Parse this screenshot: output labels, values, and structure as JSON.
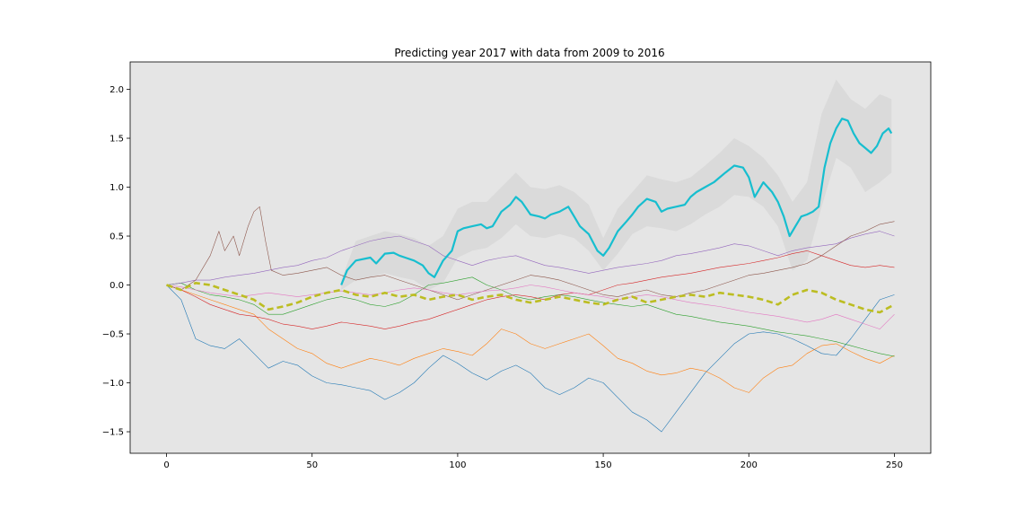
{
  "chart_data": {
    "type": "line",
    "title": "Predicting year 2017 with data from 2009 to 2016",
    "xlabel": "",
    "ylabel": "",
    "xlim": [
      -12.5,
      262.5
    ],
    "ylim": [
      -1.72,
      2.28
    ],
    "x_ticks": [
      0,
      50,
      100,
      150,
      200,
      250
    ],
    "y_ticks": [
      -1.5,
      -1.0,
      -0.5,
      0.0,
      0.5,
      1.0,
      1.5,
      2.0
    ],
    "x_tick_labels": [
      "0",
      "50",
      "100",
      "150",
      "200",
      "250"
    ],
    "y_tick_labels": [
      "−1.5",
      "−1.0",
      "−0.5",
      "0.0",
      "0.5",
      "1.0",
      "1.5",
      "2.0"
    ],
    "grid": false,
    "legend": "none",
    "plot_background": "#e5e5e5",
    "series": [
      {
        "color": "#1f77b4",
        "width": 0.6,
        "dash": "",
        "x": [
          0,
          5,
          10,
          15,
          20,
          25,
          30,
          35,
          40,
          45,
          50,
          55,
          60,
          65,
          70,
          75,
          80,
          85,
          90,
          95,
          100,
          105,
          110,
          115,
          120,
          125,
          130,
          135,
          140,
          145,
          150,
          155,
          160,
          165,
          170,
          175,
          180,
          185,
          190,
          195,
          200,
          205,
          210,
          215,
          220,
          225,
          230,
          235,
          240,
          245,
          250
        ],
        "y": [
          0.0,
          -0.15,
          -0.55,
          -0.62,
          -0.65,
          -0.55,
          -0.7,
          -0.85,
          -0.78,
          -0.82,
          -0.93,
          -1.0,
          -1.02,
          -1.05,
          -1.08,
          -1.17,
          -1.1,
          -1.0,
          -0.85,
          -0.72,
          -0.8,
          -0.9,
          -0.97,
          -0.88,
          -0.82,
          -0.9,
          -1.05,
          -1.12,
          -1.05,
          -0.95,
          -1.0,
          -1.15,
          -1.3,
          -1.38,
          -1.5,
          -1.3,
          -1.1,
          -0.9,
          -0.75,
          -0.6,
          -0.5,
          -0.48,
          -0.5,
          -0.55,
          -0.62,
          -0.7,
          -0.72,
          -0.55,
          -0.35,
          -0.15,
          -0.1
        ]
      },
      {
        "color": "#ff7f0e",
        "width": 0.6,
        "dash": "",
        "x": [
          0,
          5,
          10,
          15,
          20,
          25,
          30,
          35,
          40,
          45,
          50,
          55,
          60,
          65,
          70,
          75,
          80,
          85,
          90,
          95,
          100,
          105,
          110,
          115,
          120,
          125,
          130,
          135,
          140,
          145,
          150,
          155,
          160,
          165,
          170,
          175,
          180,
          185,
          190,
          195,
          200,
          205,
          210,
          215,
          220,
          225,
          230,
          235,
          240,
          245,
          250
        ],
        "y": [
          0.0,
          -0.05,
          -0.1,
          -0.15,
          -0.2,
          -0.25,
          -0.3,
          -0.45,
          -0.55,
          -0.65,
          -0.7,
          -0.8,
          -0.85,
          -0.8,
          -0.75,
          -0.78,
          -0.82,
          -0.75,
          -0.7,
          -0.65,
          -0.68,
          -0.72,
          -0.6,
          -0.45,
          -0.5,
          -0.6,
          -0.65,
          -0.6,
          -0.55,
          -0.5,
          -0.62,
          -0.75,
          -0.8,
          -0.88,
          -0.92,
          -0.9,
          -0.85,
          -0.88,
          -0.95,
          -1.05,
          -1.1,
          -0.95,
          -0.85,
          -0.82,
          -0.7,
          -0.62,
          -0.6,
          -0.68,
          -0.75,
          -0.8,
          -0.72
        ]
      },
      {
        "color": "#2ca02c",
        "width": 0.6,
        "dash": "",
        "x": [
          0,
          5,
          10,
          15,
          20,
          25,
          30,
          35,
          40,
          45,
          50,
          55,
          60,
          65,
          70,
          75,
          80,
          85,
          90,
          95,
          100,
          105,
          110,
          115,
          120,
          125,
          130,
          135,
          140,
          145,
          150,
          155,
          160,
          165,
          170,
          175,
          180,
          185,
          190,
          195,
          200,
          205,
          210,
          215,
          220,
          225,
          230,
          235,
          240,
          245,
          250
        ],
        "y": [
          0.0,
          0.02,
          -0.05,
          -0.1,
          -0.12,
          -0.15,
          -0.2,
          -0.3,
          -0.3,
          -0.25,
          -0.2,
          -0.15,
          -0.12,
          -0.15,
          -0.2,
          -0.22,
          -0.18,
          -0.1,
          0.0,
          0.02,
          0.05,
          0.08,
          0.0,
          -0.05,
          -0.12,
          -0.15,
          -0.12,
          -0.1,
          -0.12,
          -0.15,
          -0.18,
          -0.2,
          -0.22,
          -0.2,
          -0.25,
          -0.3,
          -0.32,
          -0.35,
          -0.38,
          -0.4,
          -0.42,
          -0.45,
          -0.48,
          -0.5,
          -0.52,
          -0.55,
          -0.58,
          -0.62,
          -0.66,
          -0.7,
          -0.73
        ]
      },
      {
        "color": "#d62728",
        "width": 0.6,
        "dash": "",
        "x": [
          0,
          5,
          10,
          15,
          20,
          25,
          30,
          35,
          40,
          45,
          50,
          55,
          60,
          65,
          70,
          75,
          80,
          85,
          90,
          95,
          100,
          105,
          110,
          115,
          120,
          125,
          130,
          135,
          140,
          145,
          150,
          155,
          160,
          165,
          170,
          175,
          180,
          185,
          190,
          195,
          200,
          205,
          210,
          215,
          220,
          225,
          230,
          235,
          240,
          245,
          250
        ],
        "y": [
          0.0,
          -0.05,
          -0.12,
          -0.2,
          -0.25,
          -0.3,
          -0.32,
          -0.35,
          -0.4,
          -0.42,
          -0.45,
          -0.42,
          -0.38,
          -0.4,
          -0.42,
          -0.45,
          -0.42,
          -0.38,
          -0.35,
          -0.3,
          -0.25,
          -0.2,
          -0.15,
          -0.12,
          -0.1,
          -0.12,
          -0.15,
          -0.1,
          -0.08,
          -0.1,
          -0.05,
          0.0,
          0.02,
          0.05,
          0.08,
          0.1,
          0.12,
          0.15,
          0.18,
          0.2,
          0.22,
          0.25,
          0.28,
          0.32,
          0.35,
          0.3,
          0.25,
          0.2,
          0.18,
          0.2,
          0.18
        ]
      },
      {
        "color": "#9467bd",
        "width": 0.6,
        "dash": "",
        "x": [
          0,
          5,
          10,
          15,
          20,
          25,
          30,
          35,
          40,
          45,
          50,
          55,
          60,
          65,
          70,
          75,
          80,
          85,
          90,
          95,
          100,
          105,
          110,
          115,
          120,
          125,
          130,
          135,
          140,
          145,
          150,
          155,
          160,
          165,
          170,
          175,
          180,
          185,
          190,
          195,
          200,
          205,
          210,
          215,
          220,
          225,
          230,
          235,
          240,
          245,
          250
        ],
        "y": [
          0.0,
          0.02,
          0.05,
          0.05,
          0.08,
          0.1,
          0.12,
          0.15,
          0.18,
          0.2,
          0.25,
          0.28,
          0.35,
          0.4,
          0.45,
          0.48,
          0.5,
          0.45,
          0.4,
          0.3,
          0.25,
          0.2,
          0.25,
          0.28,
          0.3,
          0.25,
          0.2,
          0.18,
          0.15,
          0.12,
          0.15,
          0.18,
          0.2,
          0.22,
          0.25,
          0.3,
          0.32,
          0.35,
          0.38,
          0.42,
          0.4,
          0.35,
          0.3,
          0.35,
          0.38,
          0.4,
          0.42,
          0.48,
          0.52,
          0.55,
          0.5
        ]
      },
      {
        "color": "#8c564b",
        "width": 0.6,
        "dash": "",
        "x": [
          0,
          5,
          10,
          15,
          18,
          20,
          23,
          25,
          28,
          30,
          32,
          34,
          36,
          40,
          45,
          50,
          55,
          60,
          65,
          70,
          75,
          80,
          85,
          90,
          95,
          100,
          105,
          110,
          115,
          120,
          125,
          130,
          135,
          140,
          145,
          150,
          155,
          160,
          165,
          170,
          175,
          180,
          185,
          190,
          195,
          200,
          205,
          210,
          215,
          220,
          225,
          230,
          235,
          240,
          245,
          250
        ],
        "y": [
          0.0,
          -0.05,
          0.05,
          0.3,
          0.55,
          0.35,
          0.5,
          0.3,
          0.6,
          0.75,
          0.8,
          0.45,
          0.15,
          0.1,
          0.12,
          0.15,
          0.18,
          0.1,
          0.05,
          0.08,
          0.1,
          0.05,
          0.0,
          -0.05,
          -0.1,
          -0.15,
          -0.1,
          -0.05,
          0.0,
          0.05,
          0.1,
          0.08,
          0.05,
          0.0,
          -0.05,
          -0.1,
          -0.12,
          -0.08,
          -0.05,
          -0.1,
          -0.12,
          -0.08,
          -0.05,
          0.0,
          0.05,
          0.1,
          0.12,
          0.15,
          0.18,
          0.22,
          0.3,
          0.4,
          0.5,
          0.55,
          0.62,
          0.65
        ]
      },
      {
        "color": "#e377c2",
        "width": 0.6,
        "dash": "",
        "x": [
          0,
          5,
          10,
          15,
          20,
          25,
          30,
          35,
          40,
          45,
          50,
          55,
          60,
          65,
          70,
          75,
          80,
          85,
          90,
          95,
          100,
          105,
          110,
          115,
          120,
          125,
          130,
          135,
          140,
          145,
          150,
          155,
          160,
          165,
          170,
          175,
          180,
          185,
          190,
          195,
          200,
          205,
          210,
          215,
          220,
          225,
          230,
          235,
          240,
          245,
          250
        ],
        "y": [
          0.0,
          -0.02,
          -0.05,
          -0.08,
          -0.1,
          -0.12,
          -0.1,
          -0.08,
          -0.1,
          -0.12,
          -0.1,
          -0.08,
          -0.06,
          -0.08,
          -0.1,
          -0.08,
          -0.05,
          -0.03,
          -0.05,
          -0.08,
          -0.1,
          -0.08,
          -0.06,
          -0.05,
          -0.03,
          0.0,
          -0.02,
          -0.05,
          -0.08,
          -0.1,
          -0.12,
          -0.15,
          -0.12,
          -0.1,
          -0.12,
          -0.15,
          -0.18,
          -0.2,
          -0.22,
          -0.25,
          -0.28,
          -0.3,
          -0.32,
          -0.35,
          -0.38,
          -0.35,
          -0.3,
          -0.35,
          -0.4,
          -0.45,
          -0.3
        ]
      },
      {
        "color": "#bcbd22",
        "width": 2.6,
        "dash": "7,4",
        "x": [
          0,
          5,
          10,
          15,
          20,
          25,
          30,
          35,
          40,
          45,
          50,
          55,
          60,
          65,
          70,
          75,
          80,
          85,
          90,
          95,
          100,
          105,
          110,
          115,
          120,
          125,
          130,
          135,
          140,
          145,
          150,
          155,
          160,
          165,
          170,
          175,
          180,
          185,
          190,
          195,
          200,
          205,
          210,
          215,
          220,
          225,
          230,
          235,
          240,
          245,
          250
        ],
        "y": [
          0.0,
          -0.05,
          0.02,
          0.0,
          -0.05,
          -0.1,
          -0.15,
          -0.25,
          -0.22,
          -0.18,
          -0.12,
          -0.08,
          -0.05,
          -0.1,
          -0.12,
          -0.08,
          -0.12,
          -0.1,
          -0.15,
          -0.12,
          -0.1,
          -0.15,
          -0.12,
          -0.1,
          -0.15,
          -0.18,
          -0.15,
          -0.12,
          -0.15,
          -0.18,
          -0.2,
          -0.15,
          -0.12,
          -0.18,
          -0.15,
          -0.12,
          -0.1,
          -0.12,
          -0.08,
          -0.1,
          -0.12,
          -0.15,
          -0.2,
          -0.1,
          -0.05,
          -0.08,
          -0.15,
          -0.2,
          -0.25,
          -0.28,
          -0.2
        ]
      },
      {
        "color": "#17becf",
        "width": 2.2,
        "dash": "",
        "x": [
          60,
          62,
          65,
          70,
          72,
          75,
          78,
          80,
          82,
          85,
          88,
          90,
          92,
          95,
          98,
          100,
          102,
          105,
          108,
          110,
          112,
          115,
          118,
          120,
          122,
          125,
          128,
          130,
          132,
          135,
          138,
          140,
          142,
          145,
          148,
          150,
          152,
          155,
          158,
          160,
          162,
          165,
          168,
          170,
          172,
          175,
          178,
          180,
          182,
          185,
          188,
          190,
          192,
          195,
          198,
          200,
          202,
          205,
          208,
          210,
          212,
          214,
          216,
          218,
          220,
          222,
          224,
          226,
          228,
          230,
          232,
          234,
          236,
          238,
          240,
          242,
          244,
          246,
          248,
          249
        ],
        "y": [
          0.0,
          0.15,
          0.25,
          0.28,
          0.22,
          0.32,
          0.33,
          0.3,
          0.28,
          0.25,
          0.2,
          0.12,
          0.08,
          0.25,
          0.35,
          0.55,
          0.58,
          0.6,
          0.62,
          0.58,
          0.6,
          0.75,
          0.82,
          0.9,
          0.85,
          0.72,
          0.7,
          0.68,
          0.72,
          0.75,
          0.8,
          0.7,
          0.6,
          0.52,
          0.35,
          0.3,
          0.38,
          0.55,
          0.65,
          0.72,
          0.8,
          0.88,
          0.85,
          0.75,
          0.78,
          0.8,
          0.82,
          0.9,
          0.95,
          1.0,
          1.05,
          1.1,
          1.15,
          1.22,
          1.2,
          1.1,
          0.9,
          1.05,
          0.95,
          0.85,
          0.7,
          0.5,
          0.6,
          0.7,
          0.72,
          0.75,
          0.8,
          1.2,
          1.45,
          1.6,
          1.7,
          1.68,
          1.55,
          1.45,
          1.4,
          1.35,
          1.42,
          1.55,
          1.6,
          1.55
        ]
      }
    ],
    "band": {
      "color": "#cccccc",
      "x": [
        60,
        65,
        70,
        75,
        80,
        85,
        90,
        95,
        100,
        105,
        110,
        115,
        120,
        125,
        130,
        135,
        140,
        145,
        150,
        155,
        160,
        165,
        170,
        175,
        180,
        185,
        190,
        195,
        200,
        205,
        210,
        215,
        220,
        225,
        230,
        235,
        240,
        245,
        249
      ],
      "lower": [
        -0.05,
        0.05,
        0.08,
        0.12,
        0.08,
        0.05,
        -0.05,
        0.02,
        0.28,
        0.35,
        0.38,
        0.48,
        0.62,
        0.5,
        0.48,
        0.52,
        0.48,
        0.35,
        0.15,
        0.32,
        0.52,
        0.6,
        0.58,
        0.55,
        0.62,
        0.72,
        0.8,
        0.92,
        0.9,
        0.8,
        0.6,
        0.15,
        0.25,
        0.8,
        1.3,
        1.2,
        0.95,
        1.05,
        1.15
      ],
      "upper": [
        0.05,
        0.45,
        0.5,
        0.55,
        0.52,
        0.48,
        0.4,
        0.5,
        0.78,
        0.85,
        0.85,
        1.0,
        1.15,
        1.0,
        0.98,
        1.02,
        0.95,
        0.82,
        0.48,
        0.78,
        0.95,
        1.12,
        1.08,
        1.05,
        1.1,
        1.22,
        1.35,
        1.5,
        1.42,
        1.3,
        1.12,
        0.85,
        1.05,
        1.75,
        2.1,
        1.9,
        1.8,
        1.95,
        1.9
      ]
    }
  }
}
